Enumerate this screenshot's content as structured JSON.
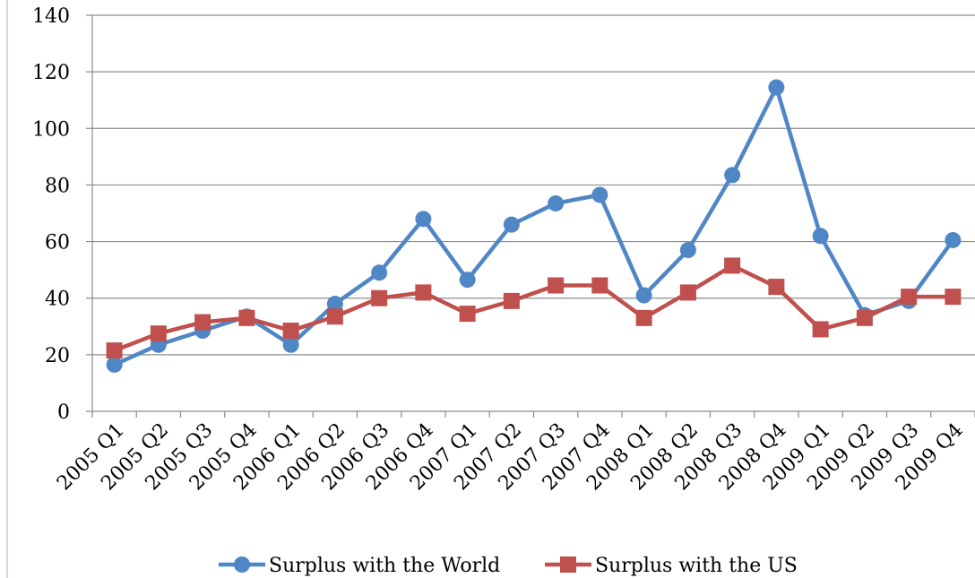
{
  "chart_data": {
    "type": "line",
    "title": "",
    "xlabel": "",
    "ylabel": "",
    "ylim": [
      0,
      140
    ],
    "yticks": [
      "0",
      "20",
      "40",
      "60",
      "80",
      "100",
      "120",
      "140"
    ],
    "grid": true,
    "legend_position": "bottom",
    "categories": [
      "2005 Q1",
      "2005 Q2",
      "2005 Q3",
      "2005 Q4",
      "2006 Q1",
      "2006 Q2",
      "2006 Q3",
      "2006 Q4",
      "2007 Q1",
      "2007 Q2",
      "2007 Q3",
      "2007 Q4",
      "2008 Q1",
      "2008 Q2",
      "2008 Q3",
      "2008 Q4",
      "2009 Q1",
      "2009 Q2",
      "2009 Q3",
      "2009 Q4"
    ],
    "series": [
      {
        "name": "Surplus with the World",
        "color": "#4f86c6",
        "marker": "circle",
        "values": [
          16.5,
          23.5,
          28.5,
          33.5,
          23.5,
          38,
          49,
          68,
          46.5,
          66,
          73.5,
          76.5,
          41,
          57,
          83.5,
          114.5,
          62,
          34,
          39,
          60.5
        ]
      },
      {
        "name": "Surplus with the US",
        "color": "#c0504d",
        "marker": "square",
        "values": [
          21.5,
          27.5,
          31.5,
          33,
          28.5,
          33.5,
          40,
          42,
          34.5,
          39,
          44.5,
          44.5,
          33,
          42,
          51.5,
          44,
          29,
          33,
          40.5,
          40.5
        ]
      }
    ]
  }
}
